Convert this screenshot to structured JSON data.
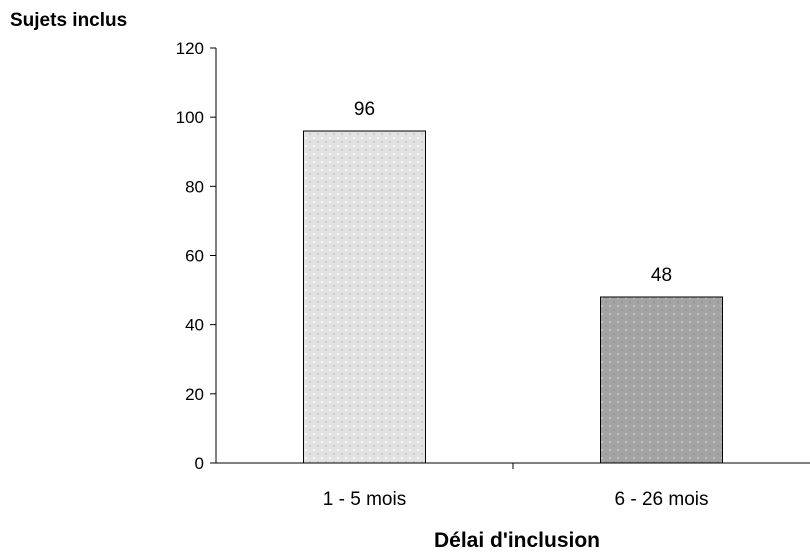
{
  "chart_data": {
    "type": "bar",
    "ylabel": "Sujets inclus",
    "xlabel": "Délai d'inclusion",
    "categories": [
      "1 - 5 mois",
      "6 - 26 mois"
    ],
    "values": [
      96,
      48
    ],
    "data_labels": [
      "96",
      "48"
    ],
    "ylim": [
      0,
      120
    ],
    "yticks": [
      0,
      20,
      40,
      60,
      80,
      100,
      120
    ],
    "ytick_labels": [
      "0",
      "20",
      "40",
      "60",
      "80",
      "100",
      "120"
    ],
    "bar_fills": [
      "#e2e2e2",
      "#a4a4a4"
    ],
    "bar_dot_color": "#c8c8c8",
    "grid": false,
    "legend": "none"
  }
}
